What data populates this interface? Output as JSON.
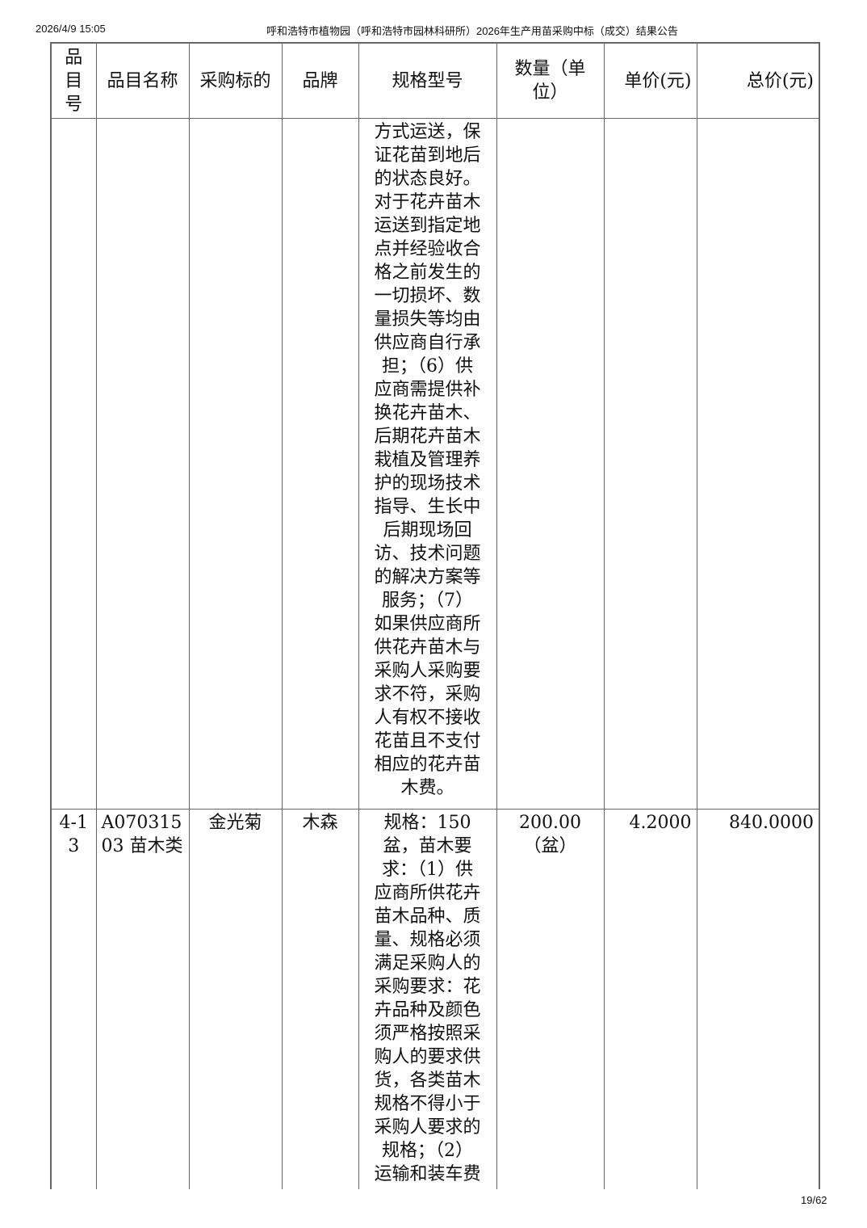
{
  "header": {
    "timestamp": "2026/4/9 15:05",
    "title": "呼和浩特市植物园（呼和浩特市园林科研所）2026年生产用苗采购中标（成交）结果公告"
  },
  "table": {
    "columns": [
      "品目号",
      "品目名称",
      "采购标的",
      "品牌",
      "规格型号",
      "数量（单位）",
      "单价(元)",
      "总价(元)"
    ],
    "rows": [
      {
        "item_no": "",
        "category": "",
        "target": "",
        "brand": "",
        "spec_lines": [
          "方式运送，保",
          "证花苗到地后",
          "的状态良好。",
          "对于花卉苗木",
          "运送到指定地",
          "点并经验收合",
          "格之前发生的",
          "一切损坏、数",
          "量损失等均由",
          "供应商自行承",
          "担；（6）供",
          "应商需提供补",
          "换花卉苗木、",
          "后期花卉苗木",
          "栽植及管理养",
          "护的现场技术",
          "指导、生长中",
          "后期现场回",
          "访、技术问题",
          "的解决方案等",
          "服务；（7）",
          "如果供应商所",
          "供花卉苗木与",
          "采购人采购要",
          "求不符，采购",
          "人有权不接收",
          "花苗且不支付",
          "相应的花卉苗",
          "木费。"
        ],
        "quantity": "",
        "unit_price": "",
        "total": ""
      },
      {
        "item_no": "4-13",
        "category": "A07031503 苗木类",
        "target": "金光菊",
        "brand": "木森",
        "spec_lines": [
          "规格：150",
          "盆，苗木要",
          "求：（1）供",
          "应商所供花卉",
          "苗木品种、质",
          "量、规格必须",
          "满足采购人的",
          "采购要求：花",
          "卉品种及颜色",
          "须严格按照采",
          "购人的要求供",
          "货，各类苗木",
          "规格不得小于",
          "采购人要求的",
          "规格；（2）",
          "运输和装车费"
        ],
        "quantity": "200.00（盆）",
        "unit_price": "4.2000",
        "total": "840.0000"
      }
    ]
  },
  "footer": {
    "page": "19/62"
  }
}
